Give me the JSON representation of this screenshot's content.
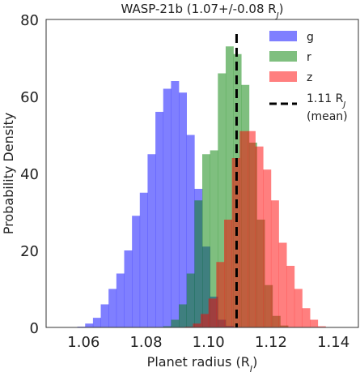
{
  "chart_data": {
    "type": "histogram",
    "title": "WASP-21b (1.07+/-0.08 R",
    "title_sub": "J",
    "title_end": ")",
    "xlabel": "Planet radius (R",
    "xlabel_sub": "J",
    "xlabel_end": ")",
    "ylabel": "Probability Density",
    "xlim": [
      1.048,
      1.148
    ],
    "ylim": [
      0,
      80
    ],
    "xticks": [
      1.06,
      1.08,
      1.1,
      1.12,
      1.14
    ],
    "xtick_labels": [
      "1.06",
      "1.08",
      "1.10",
      "1.12",
      "1.14"
    ],
    "yticks": [
      0,
      20,
      40,
      60,
      80
    ],
    "ytick_labels": [
      "0",
      "20",
      "40",
      "60",
      "80"
    ],
    "grid": false,
    "legend_position": "top-right",
    "alpha": 0.5,
    "series": [
      {
        "name": "g",
        "color": "#0000ff",
        "bin_start": 1.058,
        "bin_width": 0.0025,
        "values": [
          0.2,
          1,
          2.5,
          6,
          10,
          14,
          20,
          29,
          35,
          45,
          56,
          62,
          64,
          61,
          50,
          36,
          21,
          8,
          2,
          0.4
        ]
      },
      {
        "name": "r",
        "color": "#008000",
        "bin_start": 1.0855,
        "bin_width": 0.0025,
        "values": [
          0.3,
          2,
          6,
          14,
          33,
          45,
          46,
          66,
          73,
          71,
          63,
          48,
          28,
          11,
          3,
          0.5
        ]
      },
      {
        "name": "z",
        "color": "#ff0000",
        "bin_start": 1.0925,
        "bin_width": 0.0025,
        "values": [
          0.2,
          1,
          3.5,
          7.5,
          17,
          28,
          44,
          51,
          51,
          47,
          41,
          33,
          22,
          16,
          10,
          5,
          2,
          0.3
        ]
      }
    ],
    "mean_line": {
      "x": 1.109,
      "label": "1.11 R",
      "label_sub": "J",
      "label2": "(mean)",
      "color": "#000000"
    }
  }
}
